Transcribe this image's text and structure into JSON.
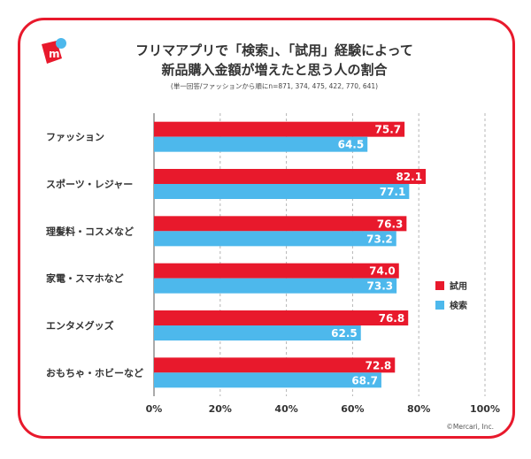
{
  "title_line1": "フリマアプリで「検索」、「試用」経験によって",
  "title_line2": "新品購入金額が増えたと思う人の割合",
  "note": "(単一回答/ファッションから順にn=871, 374, 475, 422, 770, 641)",
  "copyright": "©Mercari, Inc.",
  "logo_letter": "m",
  "colors": {
    "border": "#e8192c",
    "series_trial": "#e8192c",
    "series_search": "#4db8ec",
    "logo_accent": "#4db8ec"
  },
  "chart_data": {
    "type": "bar",
    "orientation": "horizontal",
    "categories": [
      "ファッション",
      "スポーツ・レジャー",
      "理髪料・コスメなど",
      "家電・スマホなど",
      "エンタメグッズ",
      "おもちゃ・ホビーなど"
    ],
    "series": [
      {
        "name": "試用",
        "color": "#e8192c",
        "values": [
          75.7,
          82.1,
          76.3,
          74.0,
          76.8,
          72.8
        ],
        "labels": [
          "75.7",
          "82.1",
          "76.3",
          "74.0",
          "76.8",
          "72.8"
        ]
      },
      {
        "name": "検索",
        "color": "#4db8ec",
        "values": [
          64.5,
          77.1,
          73.2,
          73.3,
          62.5,
          68.7
        ],
        "labels": [
          "64.5",
          "77.1",
          "73.2",
          "73.3",
          "62.5",
          "68.7"
        ]
      }
    ],
    "xlim": [
      0,
      100
    ],
    "xticks": [
      "0%",
      "20%",
      "40%",
      "60%",
      "80%",
      "100%"
    ],
    "grid": "vertical-dashed",
    "legend_position": "right"
  }
}
